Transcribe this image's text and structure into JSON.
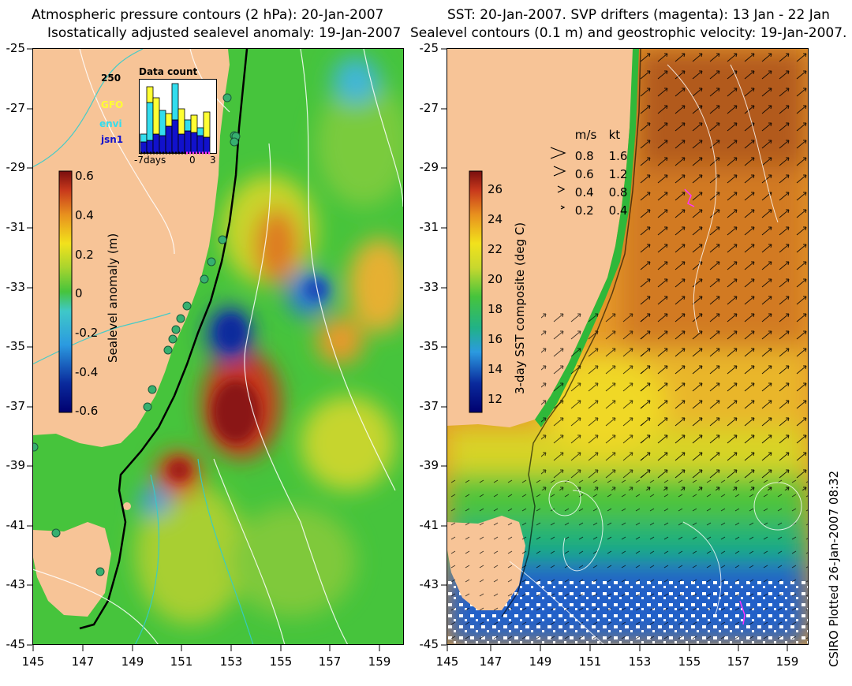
{
  "titles": {
    "left_line1": "Atmospheric pressure contours (2 hPa): 20-Jan-2007",
    "left_line2": "Isostatically adjusted sealevel anomaly: 19-Jan-2007",
    "right_line1": "SST: 20-Jan-2007. SVP drifters (magenta): 13 Jan - 22 Jan",
    "right_line2": "Sealevel contours (0.1 m) and geostrophic velocity: 19-Jan-2007."
  },
  "axes": {
    "lat_ticks": [
      "-25",
      "-27",
      "-29",
      "-31",
      "-33",
      "-35",
      "-37",
      "-39",
      "-41",
      "-43",
      "-45"
    ],
    "lon_ticks": [
      "145",
      "147",
      "149",
      "151",
      "153",
      "155",
      "157",
      "159"
    ]
  },
  "left_colorbar": {
    "label": "Sealevel anomaly (m)",
    "ticks": [
      "0.6",
      "0.4",
      "0.2",
      "0",
      "-0.2",
      "-0.4",
      "-0.6"
    ],
    "range": [
      -0.6,
      0.6
    ]
  },
  "right_colorbar": {
    "label": "3-day SST composite (deg C)",
    "ticks": [
      "26",
      "24",
      "22",
      "20",
      "18",
      "16",
      "14",
      "12"
    ],
    "range": [
      11,
      27
    ]
  },
  "inset": {
    "title": "Data count",
    "ymax_label": "250",
    "series_labels": [
      "GFO",
      "envi",
      "jsn1"
    ],
    "series_colors": [
      "#ffff33",
      "#33ddee",
      "#1111cc"
    ],
    "x_labels": [
      "-7days",
      "0",
      "3"
    ]
  },
  "velocity_legend": {
    "header_ms": "m/s",
    "header_kt": "kt",
    "rows": [
      {
        "ms": "0.8",
        "kt": "1.6"
      },
      {
        "ms": "0.6",
        "kt": "1.2"
      },
      {
        "ms": "0.4",
        "kt": "0.8"
      },
      {
        "ms": "0.2",
        "kt": "0.4"
      }
    ]
  },
  "footer": "CSIRO Plotted 26-Jan-2007 08:32",
  "colors": {
    "land": "#f7c497",
    "ocean_green": "#3fc23c",
    "warm_red": "#b8221a",
    "cold_blue": "#0a2a9c"
  }
}
